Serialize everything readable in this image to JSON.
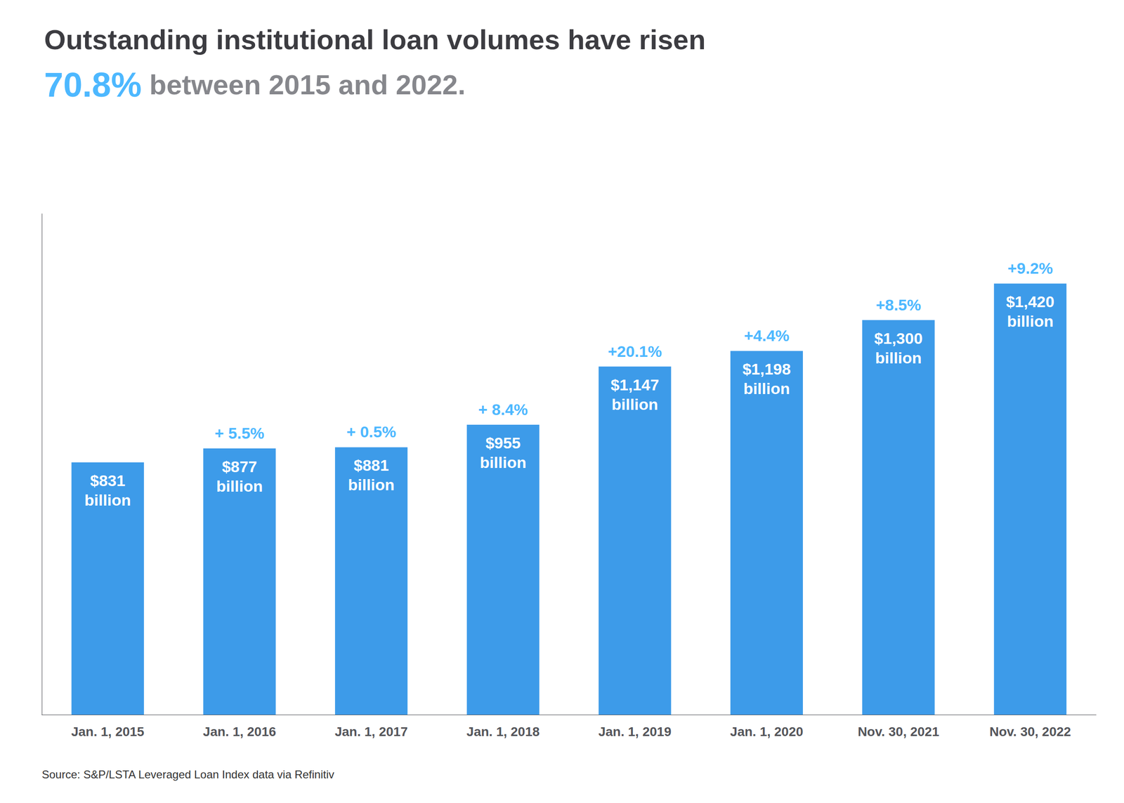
{
  "chart_data": {
    "type": "bar",
    "title": "Outstanding institutional loan volumes have risen",
    "subtitle": [
      {
        "text": "70.8%",
        "color": "#4db8ff"
      },
      {
        "text": " between 2015 and 2022."
      }
    ],
    "categories": [
      "Jan. 1, 2015",
      "Jan. 1, 2016",
      "Jan. 1, 2017",
      "Jan. 1, 2018",
      "Jan. 1, 2019",
      "Jan. 1, 2020",
      "Nov. 30, 2021",
      "Nov. 30, 2022"
    ],
    "values": [
      831,
      877,
      881,
      955,
      1147,
      1198,
      1300,
      1420
    ],
    "value_labels": [
      "$831\nbillion",
      "$877\nbillion",
      "$881\nbillion",
      "$955\nbillion",
      "$1,147\nbillion",
      "$1,198\nbillion",
      "$1,300\nbillion",
      "$1,420\nbillion"
    ],
    "data_labels": true,
    "pct_labels": [
      null,
      "+ 5.5%",
      "+ 0.5%",
      "+ 8.4%",
      "+20.1%",
      "+4.4%",
      "+8.5%",
      "+9.2%"
    ],
    "color": "#3d9be9",
    "ylim": [
      0,
      1650
    ],
    "tick_labels": "x",
    "grid": false,
    "source": "Source: S&P/LSTA Leveraged Loan Index data via Refinitiv"
  }
}
